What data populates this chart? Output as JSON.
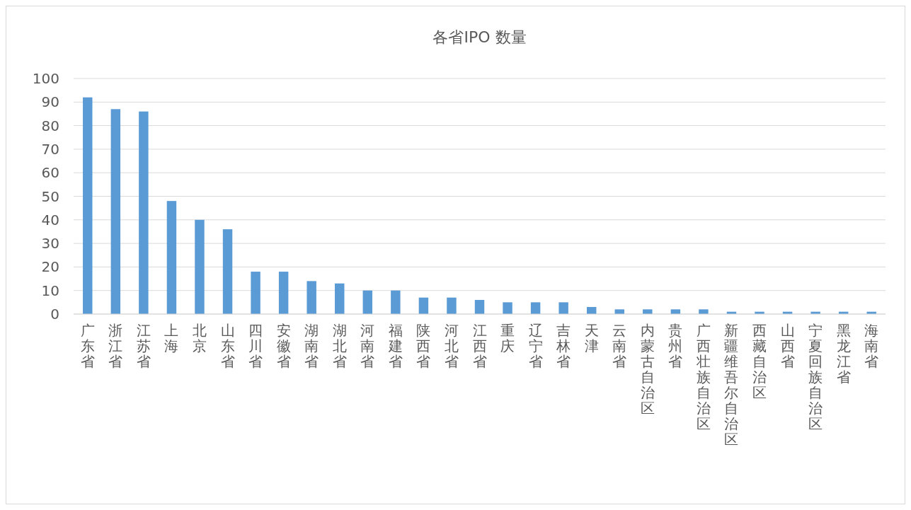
{
  "chart_data": {
    "type": "bar",
    "title": "各省IPO 数量",
    "categories": [
      "广东省",
      "浙江省",
      "江苏省",
      "上海",
      "北京",
      "山东省",
      "四川省",
      "安徽省",
      "湖南省",
      "湖北省",
      "河南省",
      "福建省",
      "陕西省",
      "河北省",
      "江西省",
      "重庆",
      "辽宁省",
      "吉林省",
      "天津",
      "云南省",
      "内蒙古自治区",
      "贵州省",
      "广西壮族自治区",
      "新疆维吾尔自治区",
      "西藏自治区",
      "山西省",
      "宁夏回族自治区",
      "黑龙江省",
      "海南省"
    ],
    "values": [
      92,
      87,
      86,
      48,
      40,
      36,
      18,
      18,
      14,
      13,
      10,
      10,
      7,
      7,
      6,
      5,
      5,
      5,
      3,
      2,
      2,
      2,
      2,
      1,
      1,
      1,
      1,
      1,
      1
    ],
    "color": "#5b9bd5",
    "ylim": [
      0,
      100
    ],
    "yticks": [
      0,
      10,
      20,
      30,
      40,
      50,
      60,
      70,
      80,
      90,
      100
    ],
    "grid": "y"
  }
}
